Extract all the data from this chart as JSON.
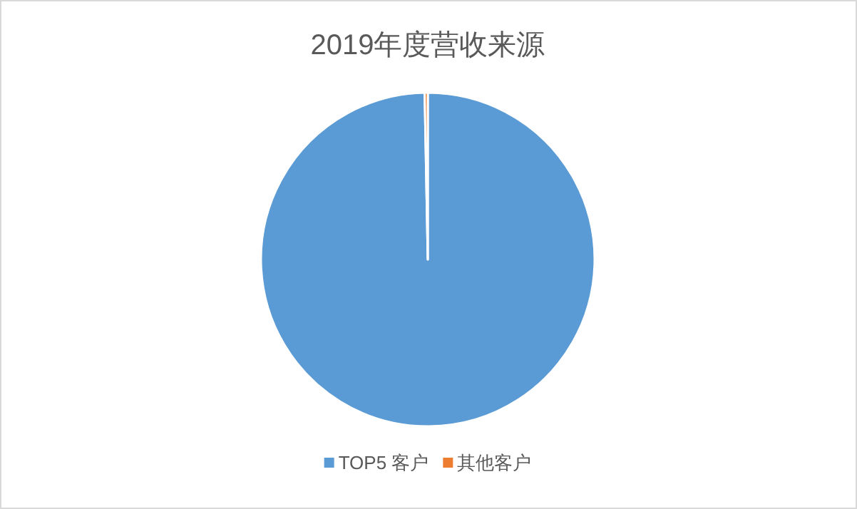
{
  "chart_data": {
    "type": "pie",
    "title": "2019年度营收来源",
    "categories": [
      "TOP5 客户",
      "其他客户"
    ],
    "values": [
      99.7,
      0.3
    ],
    "colors": [
      "#5b9bd5",
      "#ed7d31"
    ],
    "legend": "bottom"
  }
}
